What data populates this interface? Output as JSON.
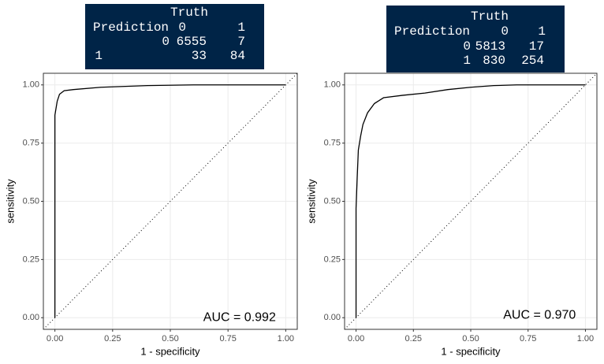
{
  "chart_data": [
    {
      "type": "line",
      "x": [
        0,
        0,
        0.005,
        0.01,
        0.02,
        0.04,
        0.08,
        0.2,
        0.4,
        0.6,
        1
      ],
      "values": [
        0,
        0.87,
        0.9,
        0.93,
        0.96,
        0.975,
        0.98,
        0.99,
        0.997,
        1,
        1
      ],
      "color": "#000000",
      "xlabel": "1 - specificity",
      "ylabel": "sensitivity",
      "xlim": [
        -0.05,
        1.05
      ],
      "ylim": [
        -0.05,
        1.05
      ],
      "xticks": [
        {
          "value": 0,
          "label": "0.00"
        },
        {
          "value": 0.25,
          "label": "0.25"
        },
        {
          "value": 0.5,
          "label": "0.50"
        },
        {
          "value": 0.75,
          "label": "0.75"
        },
        {
          "value": 1,
          "label": "1.00"
        }
      ],
      "yticks": [
        {
          "value": 0,
          "label": "0.00"
        },
        {
          "value": 0.25,
          "label": "0.25"
        },
        {
          "value": 0.5,
          "label": "0.50"
        },
        {
          "value": 0.75,
          "label": "0.75"
        },
        {
          "value": 1,
          "label": "1.00"
        }
      ],
      "grid": true,
      "annotation": "AUC = 0.992",
      "confusion_matrix": {
        "header": "Truth",
        "row_label": "Prediction",
        "columns": [
          "0",
          "1"
        ],
        "rows": [
          {
            "label": "0",
            "values": [
              6555,
              7
            ]
          },
          {
            "label": "1",
            "values": [
              33,
              84
            ]
          }
        ]
      }
    },
    {
      "type": "line",
      "x": [
        0,
        0,
        0.005,
        0.01,
        0.02,
        0.03,
        0.05,
        0.08,
        0.12,
        0.2,
        0.3,
        0.4,
        0.5,
        0.6,
        0.7,
        1
      ],
      "values": [
        0,
        0.47,
        0.6,
        0.72,
        0.78,
        0.83,
        0.88,
        0.92,
        0.945,
        0.955,
        0.965,
        0.98,
        0.99,
        0.997,
        1,
        1
      ],
      "color": "#000000",
      "xlabel": "1 - specificity",
      "ylabel": "sensitivity",
      "xlim": [
        -0.05,
        1.05
      ],
      "ylim": [
        -0.05,
        1.05
      ],
      "xticks": [
        {
          "value": 0,
          "label": "0.00"
        },
        {
          "value": 0.25,
          "label": "0.25"
        },
        {
          "value": 0.5,
          "label": "0.50"
        },
        {
          "value": 0.75,
          "label": "0.75"
        },
        {
          "value": 1,
          "label": "1.00"
        }
      ],
      "yticks": [
        {
          "value": 0,
          "label": "0.00"
        },
        {
          "value": 0.25,
          "label": "0.25"
        },
        {
          "value": 0.5,
          "label": "0.50"
        },
        {
          "value": 0.75,
          "label": "0.75"
        },
        {
          "value": 1,
          "label": "1.00"
        }
      ],
      "grid": true,
      "annotation": "AUC = 0.970",
      "confusion_matrix": {
        "header": "Truth",
        "row_label": "Prediction",
        "columns": [
          "0",
          "1"
        ],
        "rows": [
          {
            "label": "0",
            "values": [
              5813,
              17
            ]
          },
          {
            "label": "1",
            "values": [
              830,
              254
            ]
          }
        ]
      }
    }
  ]
}
